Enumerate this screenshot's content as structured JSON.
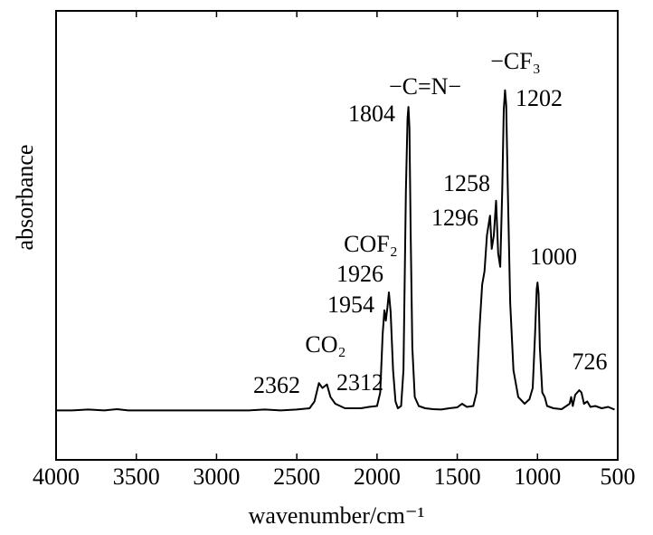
{
  "chart_data": {
    "type": "line",
    "y_label": "absorbance",
    "x_label": "wavenumber/cm⁻¹",
    "x_reversed": true,
    "xlim": [
      4000,
      500
    ],
    "xticks": [
      4000,
      3500,
      3000,
      2500,
      2000,
      1500,
      1000,
      500
    ],
    "ylim": [
      0,
      1
    ],
    "series": [
      {
        "color": "#000000",
        "x": [
          4000,
          3900,
          3800,
          3700,
          3620,
          3550,
          3400,
          3200,
          3000,
          2800,
          2700,
          2600,
          2500,
          2420,
          2390,
          2362,
          2340,
          2312,
          2290,
          2260,
          2200,
          2100,
          2050,
          2000,
          1980,
          1965,
          1954,
          1945,
          1935,
          1926,
          1915,
          1900,
          1885,
          1870,
          1850,
          1835,
          1820,
          1810,
          1804,
          1798,
          1790,
          1780,
          1765,
          1740,
          1700,
          1650,
          1600,
          1550,
          1500,
          1470,
          1440,
          1400,
          1380,
          1360,
          1345,
          1330,
          1315,
          1296,
          1285,
          1272,
          1258,
          1245,
          1232,
          1220,
          1210,
          1202,
          1195,
          1185,
          1170,
          1150,
          1120,
          1080,
          1050,
          1030,
          1015,
          1005,
          1000,
          993,
          985,
          970,
          955,
          940,
          900,
          850,
          820,
          800,
          790,
          780,
          765,
          740,
          726,
          710,
          690,
          670,
          640,
          600,
          560,
          520
        ],
        "values": [
          0.11,
          0.11,
          0.112,
          0.11,
          0.113,
          0.11,
          0.11,
          0.11,
          0.11,
          0.11,
          0.112,
          0.11,
          0.112,
          0.115,
          0.13,
          0.171,
          0.16,
          0.168,
          0.14,
          0.125,
          0.115,
          0.115,
          0.118,
          0.12,
          0.15,
          0.28,
          0.333,
          0.31,
          0.34,
          0.373,
          0.33,
          0.2,
          0.13,
          0.115,
          0.12,
          0.2,
          0.6,
          0.76,
          0.786,
          0.74,
          0.5,
          0.25,
          0.14,
          0.12,
          0.115,
          0.113,
          0.112,
          0.115,
          0.117,
          0.125,
          0.118,
          0.12,
          0.15,
          0.3,
          0.39,
          0.42,
          0.5,
          0.544,
          0.47,
          0.5,
          0.577,
          0.46,
          0.43,
          0.6,
          0.78,
          0.823,
          0.79,
          0.6,
          0.35,
          0.2,
          0.14,
          0.125,
          0.135,
          0.16,
          0.28,
          0.38,
          0.395,
          0.37,
          0.25,
          0.15,
          0.14,
          0.12,
          0.115,
          0.113,
          0.12,
          0.125,
          0.14,
          0.12,
          0.145,
          0.155,
          0.15,
          0.125,
          0.13,
          0.118,
          0.12,
          0.115,
          0.118,
          0.112
        ]
      }
    ],
    "peak_labels": [
      2362,
      2312,
      1954,
      1926,
      1804,
      1296,
      1258,
      1202,
      1000,
      726
    ],
    "group_labels": [
      "CO₂",
      "COF₂",
      "−C=N−",
      "−CF₃"
    ]
  }
}
